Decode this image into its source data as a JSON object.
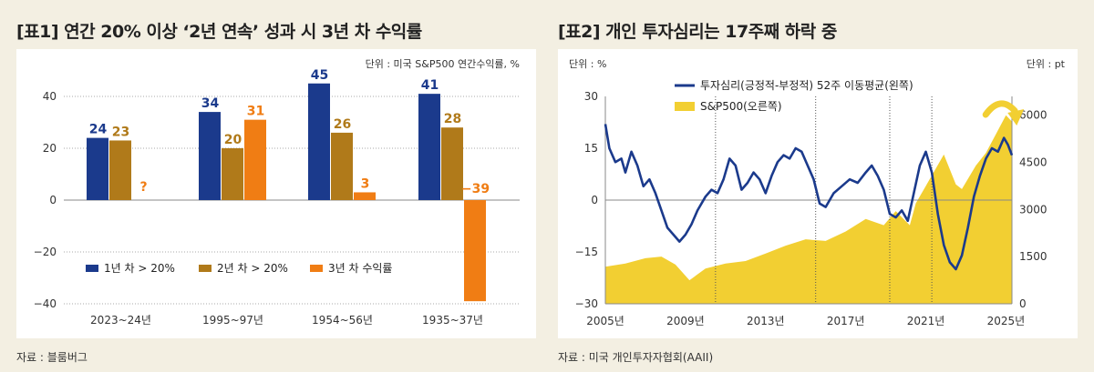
{
  "charts": [
    {
      "title": "[표1] 연간 20% 이상 ‘2년 연속’ 성과 시 3년 차 수익률",
      "unit": "단위 : 미국 S&P500 연간수익률, %",
      "source": "자료 : 블룸버그",
      "chart_data": {
        "type": "bar",
        "categories": [
          "2023~24년",
          "1995~97년",
          "1954~56년",
          "1935~37년"
        ],
        "ylim": [
          -40,
          40
        ],
        "yticks": [
          40,
          20,
          0,
          -20,
          -40
        ],
        "series": [
          {
            "name": "1년 차 > 20%",
            "color": "#1b3a8c",
            "values": [
              24,
              34,
              45,
              41
            ],
            "labels": [
              "24",
              "34",
              "45",
              "41"
            ]
          },
          {
            "name": "2년 차 > 20%",
            "color": "#b07a1a",
            "values": [
              23,
              20,
              26,
              28
            ],
            "labels": [
              "23",
              "20",
              "26",
              "28"
            ]
          },
          {
            "name": "3년 차 수익률",
            "color": "#f07d14",
            "values": [
              null,
              31,
              3,
              -39
            ],
            "labels": [
              "?",
              "31",
              "3",
              "−39"
            ]
          }
        ]
      }
    },
    {
      "title": "[표2] 개인 투자심리는 17주째 하락 중",
      "unit_left": "단위 : %",
      "unit_right": "단위 : pt",
      "source": "자료 : 미국 개인투자자협회(AAII)",
      "chart_data": {
        "type": "line",
        "xlim": [
          2005,
          2025.3
        ],
        "xticks": [
          "2005년",
          "2009년",
          "2013년",
          "2017년",
          "2021년",
          "2025년"
        ],
        "ylim_left": [
          -30,
          30
        ],
        "yticks_left": [
          30,
          15,
          0,
          -15,
          -30
        ],
        "ylim_right": [
          0,
          6600
        ],
        "yticks_right": [
          6000,
          4500,
          3000,
          1500,
          0
        ],
        "vlines": [
          2010.5,
          2015.5,
          2019.2,
          2021.3
        ],
        "series": [
          {
            "name": "투자심리(긍정적-부정적) 52주 이동평균(왼쪽)",
            "axis": "left",
            "color": "#1b3a8c",
            "x": [
              2005.0,
              2005.2,
              2005.5,
              2005.8,
              2006.0,
              2006.3,
              2006.6,
              2006.9,
              2007.2,
              2007.5,
              2007.8,
              2008.1,
              2008.4,
              2008.7,
              2009.0,
              2009.3,
              2009.6,
              2010.0,
              2010.3,
              2010.6,
              2010.9,
              2011.2,
              2011.5,
              2011.8,
              2012.1,
              2012.4,
              2012.7,
              2013.0,
              2013.3,
              2013.6,
              2013.9,
              2014.2,
              2014.5,
              2014.8,
              2015.1,
              2015.4,
              2015.7,
              2016.0,
              2016.4,
              2016.8,
              2017.2,
              2017.6,
              2018.0,
              2018.3,
              2018.6,
              2018.9,
              2019.2,
              2019.5,
              2019.8,
              2020.1,
              2020.4,
              2020.7,
              2021.0,
              2021.3,
              2021.6,
              2021.9,
              2022.2,
              2022.5,
              2022.8,
              2023.1,
              2023.4,
              2023.7,
              2024.0,
              2024.3,
              2024.6,
              2024.9,
              2025.1,
              2025.3
            ],
            "y": [
              22,
              15,
              11,
              12,
              8,
              14,
              10,
              4,
              6,
              2,
              -3,
              -8,
              -10,
              -12,
              -10,
              -7,
              -3,
              1,
              3,
              2,
              6,
              12,
              10,
              3,
              5,
              8,
              6,
              2,
              7,
              11,
              13,
              12,
              15,
              14,
              10,
              6,
              -1,
              -2,
              2,
              4,
              6,
              5,
              8,
              10,
              7,
              3,
              -4,
              -5,
              -3,
              -6,
              2,
              10,
              14,
              8,
              -4,
              -13,
              -18,
              -20,
              -16,
              -8,
              1,
              7,
              12,
              15,
              14,
              18,
              16,
              13
            ]
          },
          {
            "name": "S&P500(오른쪽)",
            "axis": "right",
            "color": "#f2cf32",
            "x": [
              2005.0,
              2006.0,
              2007.0,
              2007.8,
              2008.5,
              2009.2,
              2010.0,
              2011.0,
              2012.0,
              2013.0,
              2014.0,
              2015.0,
              2016.0,
              2017.0,
              2018.0,
              2018.9,
              2019.5,
              2020.2,
              2020.5,
              2021.0,
              2021.9,
              2022.5,
              2022.8,
              2023.5,
              2024.0,
              2024.5,
              2025.0,
              2025.3
            ],
            "y": [
              1180,
              1280,
              1450,
              1500,
              1250,
              750,
              1120,
              1280,
              1360,
              1600,
              1850,
              2050,
              2000,
              2300,
              2700,
              2500,
              2950,
              2500,
              3200,
              3750,
              4750,
              3800,
              3650,
              4400,
              4800,
              5400,
              6000,
              5800
            ]
          }
        ]
      }
    }
  ]
}
